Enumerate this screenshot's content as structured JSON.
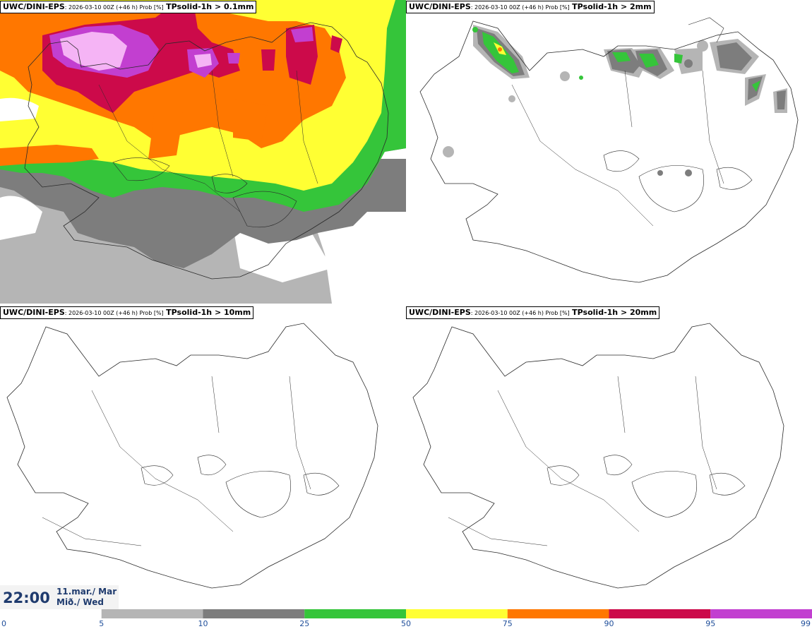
{
  "panels": [
    {
      "model": "UWC/DINI-EPS",
      "meta": ": 2026-03-10 00Z (+46 h) Prob [%]",
      "variable": "TPsolid-1h > 0.1mm"
    },
    {
      "model": "UWC/DINI-EPS",
      "meta": ": 2026-03-10 00Z (+46 h) Prob [%]",
      "variable": "TPsolid-1h > 2mm"
    },
    {
      "model": "UWC/DINI-EPS",
      "meta": ": 2026-03-10 00Z (+46 h) Prob [%]",
      "variable": "TPsolid-1h > 10mm"
    },
    {
      "model": "UWC/DINI-EPS",
      "meta": ": 2026-03-10 00Z (+46 h) Prob [%]",
      "variable": "TPsolid-1h > 20mm"
    }
  ],
  "time": {
    "clock": "22:00",
    "date_line1": "11.mar./ Mar",
    "date_line2": "Mið./ Wed"
  },
  "colorbar": {
    "ticks": [
      "0",
      "5",
      "10",
      "25",
      "50",
      "75",
      "90",
      "95",
      "99"
    ],
    "colors": [
      "#b5b5b5",
      "#7d7d7d",
      "#35c53a",
      "#ffff33",
      "#ff7700",
      "#cc0a4a",
      "#c23fd0",
      "#f5b4f5"
    ],
    "tick_color": "#1f4e9a"
  }
}
